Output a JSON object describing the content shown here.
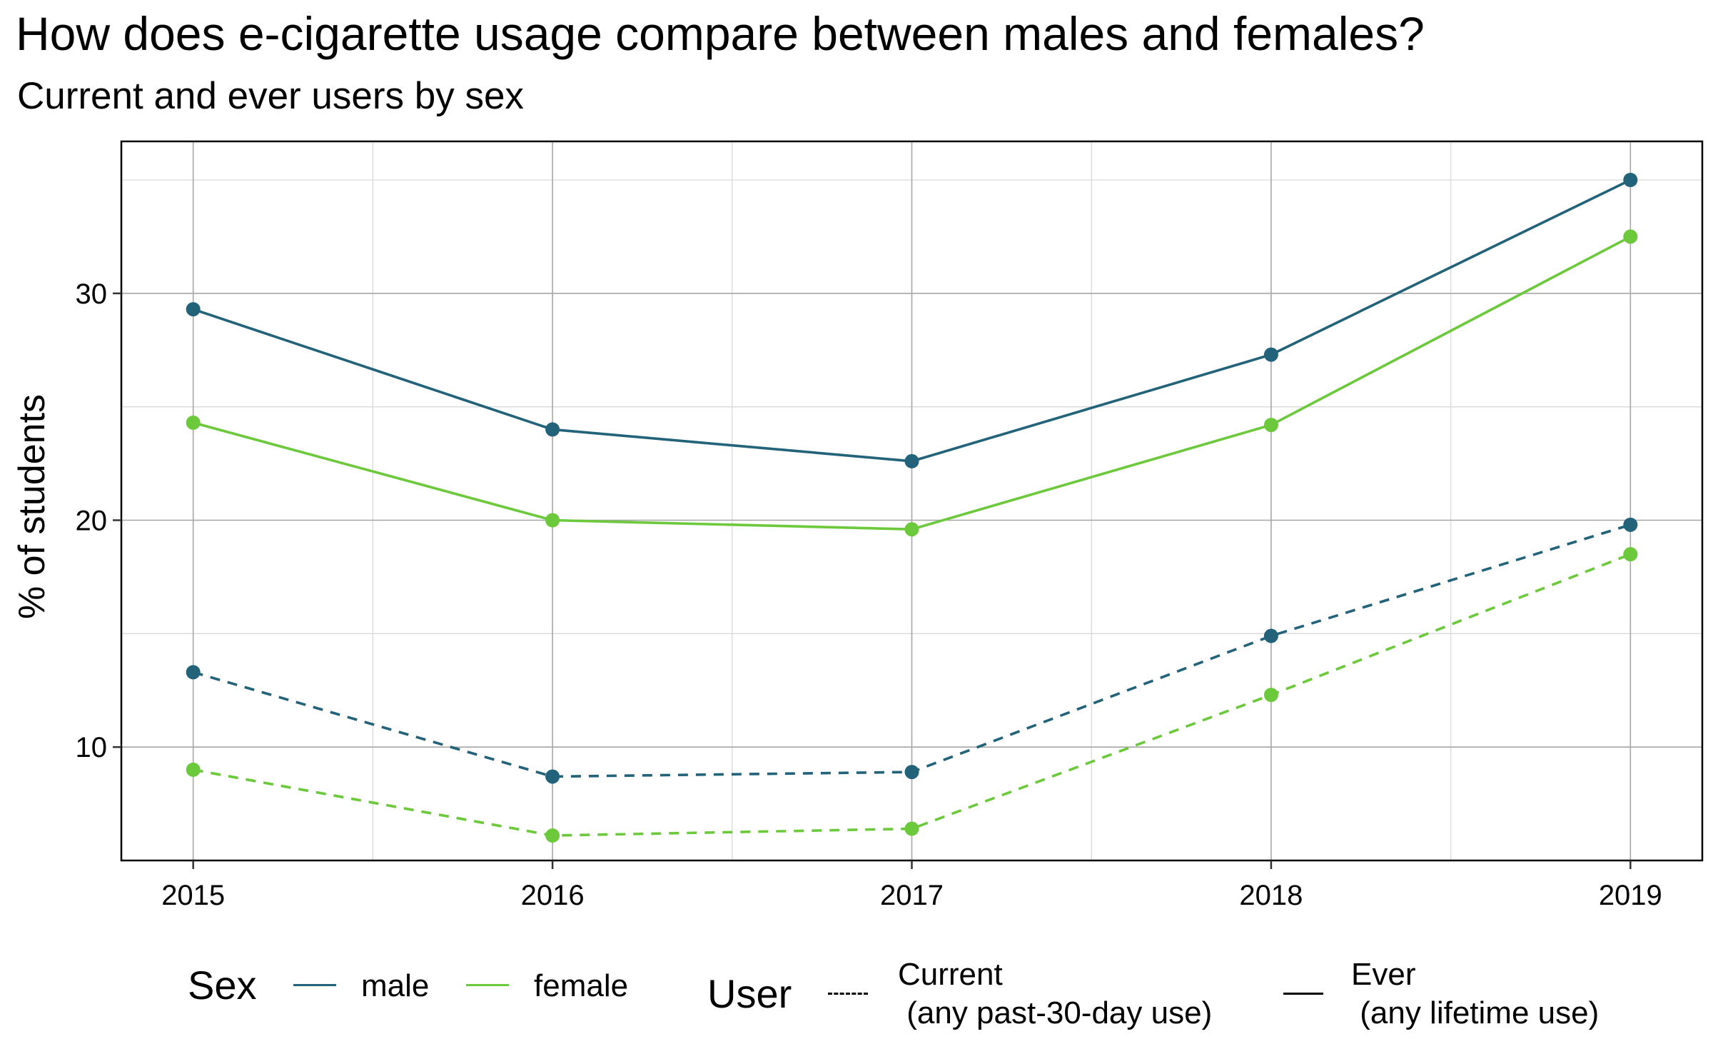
{
  "title": "How does e-cigarette usage compare between males and females?",
  "subtitle": "Current and ever users by sex",
  "colors": {
    "male": "#22637a",
    "female": "#6cc93c"
  },
  "chart_data": {
    "type": "line",
    "xlabel": "",
    "ylabel": "% of students",
    "x": [
      2015,
      2016,
      2017,
      2018,
      2019
    ],
    "xticks": [
      "2015",
      "2016",
      "2017",
      "2018",
      "2019"
    ],
    "yticks": [
      "10",
      "20",
      "30"
    ],
    "ylim": [
      5,
      36.7
    ],
    "xlim": [
      2014.8,
      2019.2
    ],
    "grid": true,
    "legend_position": "bottom",
    "series": [
      {
        "name": "male",
        "user": "Ever",
        "line": "solid",
        "values": [
          29.3,
          24.0,
          22.6,
          27.3,
          35.0
        ]
      },
      {
        "name": "female",
        "user": "Ever",
        "line": "solid",
        "values": [
          24.3,
          20.0,
          19.6,
          24.2,
          32.5
        ]
      },
      {
        "name": "male",
        "user": "Current",
        "line": "dashed",
        "values": [
          13.3,
          8.7,
          8.9,
          14.9,
          19.8
        ]
      },
      {
        "name": "female",
        "user": "Current",
        "line": "dashed",
        "values": [
          9.0,
          6.1,
          6.4,
          12.3,
          18.5
        ]
      }
    ]
  },
  "legend": {
    "sex_title": "Sex",
    "sex_items": [
      "male",
      "female"
    ],
    "user_title": "User",
    "user_items": [
      {
        "line1": "Current",
        "line2": " (any past-30-day use)"
      },
      {
        "line1": "Ever",
        "line2": " (any lifetime use)"
      }
    ]
  }
}
